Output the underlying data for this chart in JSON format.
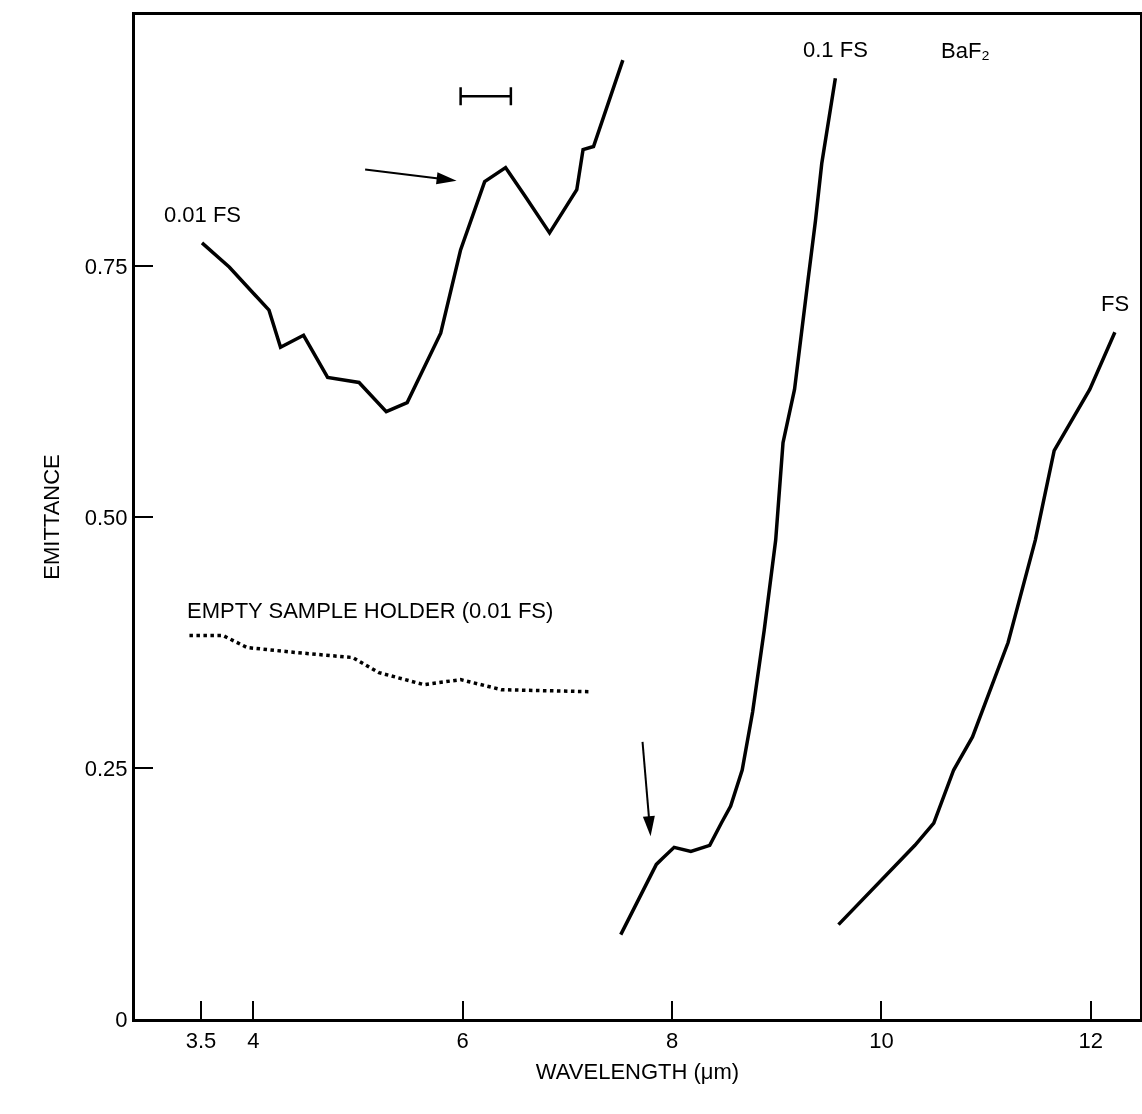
{
  "chart_data": {
    "type": "line",
    "xlabel": "WAVELENGTH (μm)",
    "ylabel": "EMITTANCE",
    "xlim": [
      2.87,
      12.47
    ],
    "ylim": [
      0,
      1
    ],
    "xticks": [
      3.5,
      4,
      6,
      8,
      10,
      12
    ],
    "yticks": [
      0,
      0.25,
      {
        "value": 0.5,
        "label": "0.50"
      },
      0.75
    ],
    "grid": false,
    "legend": false,
    "marker": "none",
    "series": [
      {
        "name": "0.01 FS",
        "color": "#000000",
        "line_style": "solid",
        "x": [
          3.51,
          3.77,
          4.15,
          4.26,
          4.48,
          4.71,
          5.01,
          5.27,
          5.47,
          5.79,
          5.98,
          6.21,
          6.41,
          6.6,
          6.83,
          7.09,
          7.15,
          7.25,
          7.53
        ],
        "values": [
          0.773,
          0.749,
          0.706,
          0.669,
          0.681,
          0.639,
          0.634,
          0.605,
          0.614,
          0.683,
          0.766,
          0.834,
          0.848,
          0.819,
          0.783,
          0.826,
          0.866,
          0.869,
          0.955
        ]
      },
      {
        "name": "EMPTY SAMPLE HOLDER (0.01 FS)",
        "color": "#000000",
        "line_style": "dotted",
        "x": [
          3.39,
          3.71,
          3.94,
          4.41,
          4.95,
          5.2,
          5.63,
          5.98,
          6.37,
          7.22
        ],
        "values": [
          0.382,
          0.382,
          0.37,
          0.365,
          0.36,
          0.345,
          0.333,
          0.338,
          0.328,
          0.326
        ]
      },
      {
        "name": "0.1 FS",
        "color": "#000000",
        "line_style": "solid",
        "x": [
          7.51,
          7.85,
          7.91,
          8.02,
          8.18,
          8.36,
          8.47,
          8.56,
          8.67,
          8.77,
          8.88,
          8.99,
          9.06,
          9.17,
          9.3,
          9.37,
          9.43,
          9.56
        ],
        "values": [
          0.084,
          0.154,
          0.16,
          0.171,
          0.167,
          0.173,
          0.195,
          0.212,
          0.248,
          0.306,
          0.387,
          0.477,
          0.574,
          0.627,
          0.737,
          0.795,
          0.852,
          0.937
        ]
      },
      {
        "name": "FS",
        "color": "#000000",
        "line_style": "solid",
        "x": [
          9.59,
          10.32,
          10.5,
          10.69,
          10.87,
          11.21,
          11.47,
          11.65,
          11.99,
          12.23
        ],
        "values": [
          0.094,
          0.173,
          0.195,
          0.248,
          0.281,
          0.375,
          0.477,
          0.566,
          0.627,
          0.684
        ]
      }
    ],
    "annotations": [
      "BaF₂"
    ]
  }
}
